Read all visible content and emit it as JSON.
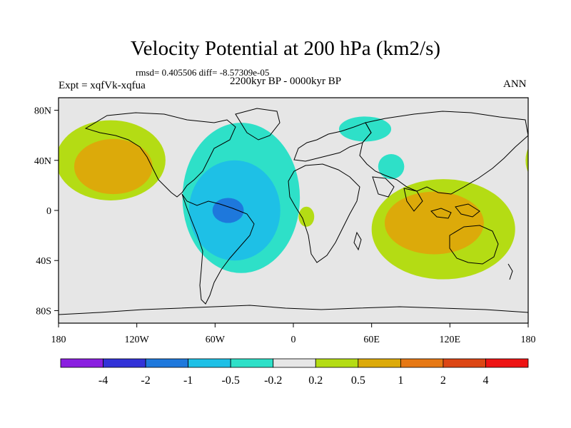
{
  "title": "Velocity Potential at 200 hPa (km2/s)",
  "stats": "rmsd= 0.405506  diff= -8.57309e-05",
  "expt": "Expt = xqfVk-xqfua",
  "period": "2200kyr BP - 0000kyr BP",
  "season": "ANN",
  "chart_data": {
    "type": "heatmap",
    "title": "Velocity Potential at 200 hPa (km2/s)",
    "subtitle": "2200kyr BP - 0000kyr BP",
    "xlabel": "",
    "ylabel": "",
    "xlim": [
      -180,
      180
    ],
    "ylim": [
      -90,
      90
    ],
    "x_ticks": [
      {
        "value": -180,
        "label": "180"
      },
      {
        "value": -120,
        "label": "120W"
      },
      {
        "value": -60,
        "label": "60W"
      },
      {
        "value": 0,
        "label": "0"
      },
      {
        "value": 60,
        "label": "60E"
      },
      {
        "value": 120,
        "label": "120E"
      },
      {
        "value": 180,
        "label": "180"
      }
    ],
    "y_ticks": [
      {
        "value": 80,
        "label": "80N"
      },
      {
        "value": 40,
        "label": "40N"
      },
      {
        "value": 0,
        "label": "0"
      },
      {
        "value": -40,
        "label": "40S"
      },
      {
        "value": -80,
        "label": "80S"
      }
    ],
    "levels": [
      "-4",
      "-2",
      "-1",
      "-0.5",
      "-0.2",
      "0.2",
      "0.5",
      "1",
      "2",
      "4"
    ],
    "colors": [
      "#8a1fe0",
      "#3232d8",
      "#1e78dc",
      "#1ec0e6",
      "#2ee0c8",
      "#e6e6e6",
      "#b4dc14",
      "#dcaa0a",
      "#e67814",
      "#dc4614",
      "#ee1414"
    ],
    "background_color": "#e6e6e6",
    "regions": [
      {
        "name": "north-pacific-positive",
        "band": "0.2 to 0.5",
        "center": [
          -140,
          40
        ],
        "rx": 42,
        "ry": 32
      },
      {
        "name": "north-pacific-core",
        "band": "0.5 to 1",
        "center": [
          -138,
          35
        ],
        "rx": 30,
        "ry": 22
      },
      {
        "name": "atlantic-negative",
        "band": "-0.5 to -0.2",
        "center": [
          -40,
          10
        ],
        "rx": 45,
        "ry": 60
      },
      {
        "name": "atlantic-negative-inner",
        "band": "-1 to -0.5",
        "center": [
          -45,
          0
        ],
        "rx": 35,
        "ry": 40
      },
      {
        "name": "south-america-core",
        "band": "-2 to -1",
        "center": [
          -50,
          0
        ],
        "rx": 12,
        "ry": 10
      },
      {
        "name": "north-europe-negative",
        "band": "-0.5 to -0.2",
        "center": [
          55,
          65
        ],
        "rx": 20,
        "ry": 10
      },
      {
        "name": "east-europe-negative",
        "band": "-0.5 to -0.2",
        "center": [
          75,
          35
        ],
        "rx": 10,
        "ry": 10
      },
      {
        "name": "indo-pacific-positive",
        "band": "0.2 to 0.5",
        "center": [
          115,
          -15
        ],
        "rx": 55,
        "ry": 40
      },
      {
        "name": "indo-pacific-core",
        "band": "0.5 to 1",
        "center": [
          108,
          -10
        ],
        "rx": 38,
        "ry": 25
      },
      {
        "name": "africa-west-positive",
        "band": "0.2 to 0.5",
        "center": [
          10,
          -5
        ],
        "rx": 6,
        "ry": 8
      }
    ]
  }
}
